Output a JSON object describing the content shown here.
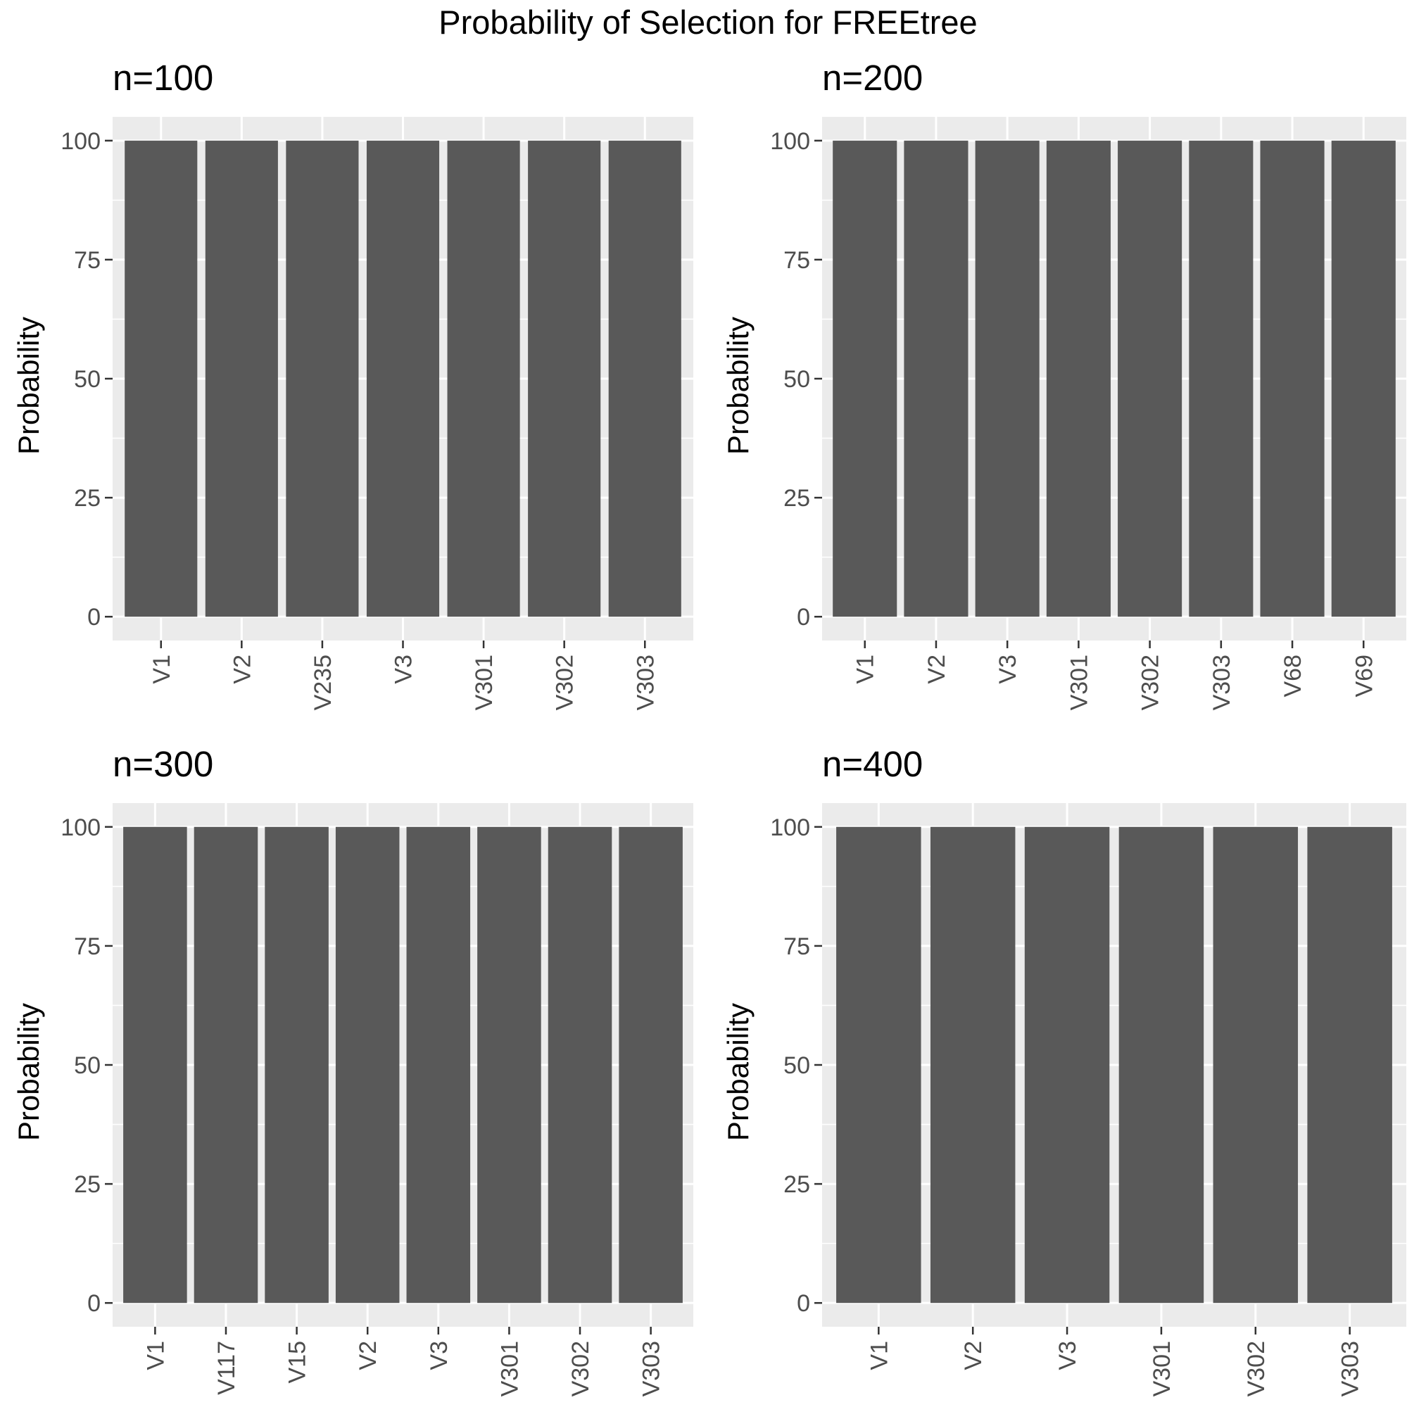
{
  "title": "Probability of Selection for FREEtree",
  "colors": {
    "panel_background": "#ebebeb",
    "grid_line": "#ffffff",
    "bar_fill": "#595959",
    "tick_mark": "#333333",
    "tick_text": "#4d4d4d"
  },
  "chart_data": [
    {
      "type": "bar",
      "title": "n=100",
      "xlabel": "",
      "ylabel": "Probability",
      "ylim": [
        0,
        100
      ],
      "yticks": [
        "0",
        "25",
        "50",
        "75",
        "100"
      ],
      "grid": true,
      "categories": [
        "V1",
        "V2",
        "V235",
        "V3",
        "V301",
        "V302",
        "V303"
      ],
      "values": [
        100,
        100,
        100,
        100,
        100,
        100,
        100
      ]
    },
    {
      "type": "bar",
      "title": "n=200",
      "xlabel": "",
      "ylabel": "Probability",
      "ylim": [
        0,
        100
      ],
      "yticks": [
        "0",
        "25",
        "50",
        "75",
        "100"
      ],
      "grid": true,
      "categories": [
        "V1",
        "V2",
        "V3",
        "V301",
        "V302",
        "V303",
        "V68",
        "V69"
      ],
      "values": [
        100,
        100,
        100,
        100,
        100,
        100,
        100,
        100
      ]
    },
    {
      "type": "bar",
      "title": "n=300",
      "xlabel": "",
      "ylabel": "Probability",
      "ylim": [
        0,
        100
      ],
      "yticks": [
        "0",
        "25",
        "50",
        "75",
        "100"
      ],
      "grid": true,
      "categories": [
        "V1",
        "V117",
        "V15",
        "V2",
        "V3",
        "V301",
        "V302",
        "V303"
      ],
      "values": [
        100,
        100,
        100,
        100,
        100,
        100,
        100,
        100
      ]
    },
    {
      "type": "bar",
      "title": "n=400",
      "xlabel": "",
      "ylabel": "Probability",
      "ylim": [
        0,
        100
      ],
      "yticks": [
        "0",
        "25",
        "50",
        "75",
        "100"
      ],
      "grid": true,
      "categories": [
        "V1",
        "V2",
        "V3",
        "V301",
        "V302",
        "V303"
      ],
      "values": [
        100,
        100,
        100,
        100,
        100,
        100
      ]
    }
  ]
}
